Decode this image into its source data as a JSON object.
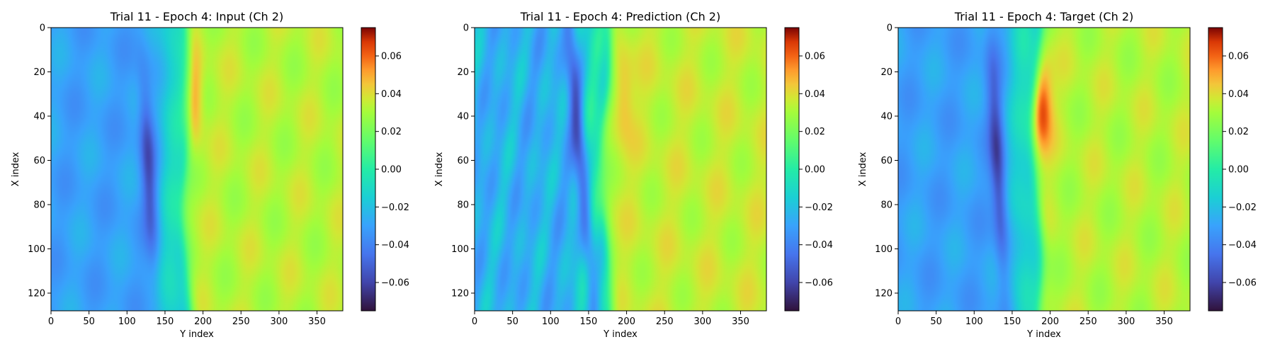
{
  "chart_data": [
    {
      "type": "heatmap",
      "title": "Trial 11 - Epoch 4: Input (Ch 2)",
      "xlabel": "Y index",
      "ylabel": "X index",
      "xlim": [
        0,
        384
      ],
      "ylim": [
        128,
        0
      ],
      "xticks": [
        "0",
        "50",
        "100",
        "150",
        "200",
        "250",
        "300",
        "350"
      ],
      "yticks": [
        "0",
        "20",
        "40",
        "60",
        "80",
        "100",
        "120"
      ],
      "colorbar": {
        "range": [
          -0.075,
          0.075
        ],
        "ticks": [
          "-0.06",
          "-0.04",
          "-0.02",
          "0.00",
          "0.02",
          "0.04",
          "0.06"
        ],
        "colormap": "turbo"
      },
      "field": {
        "front_y": 178,
        "left_level": -0.03,
        "right_level": 0.033,
        "hot_spot": {
          "x": 30,
          "y": 184,
          "value": 0.07
        },
        "cold_band": {
          "x_range": [
            30,
            95
          ],
          "y_center": 127,
          "value": -0.06
        }
      }
    },
    {
      "type": "heatmap",
      "title": "Trial 11 - Epoch 4: Prediction (Ch 2)",
      "xlabel": "Y index",
      "ylabel": "X index",
      "xlim": [
        0,
        384
      ],
      "ylim": [
        128,
        0
      ],
      "xticks": [
        "0",
        "50",
        "100",
        "150",
        "200",
        "250",
        "300",
        "350"
      ],
      "yticks": [
        "0",
        "20",
        "40",
        "60",
        "80",
        "100",
        "120"
      ],
      "colorbar": {
        "range": [
          -0.075,
          0.075
        ],
        "ticks": [
          "-0.06",
          "-0.04",
          "-0.02",
          "0.00",
          "0.02",
          "0.04",
          "0.06"
        ],
        "colormap": "turbo"
      },
      "field": {
        "front_y": 172,
        "left_level": -0.025,
        "right_level": 0.035,
        "hot_spot": {
          "x": 30,
          "y": 195,
          "value": 0.05
        },
        "cold_band": {
          "x_range": [
            0,
            125
          ],
          "y_center": 140,
          "value": -0.065
        }
      }
    },
    {
      "type": "heatmap",
      "title": "Trial 11 - Epoch 4: Target (Ch 2)",
      "xlabel": "Y index",
      "ylabel": "X index",
      "xlim": [
        0,
        384
      ],
      "ylim": [
        128,
        0
      ],
      "xticks": [
        "0",
        "50",
        "100",
        "150",
        "200",
        "250",
        "300",
        "350"
      ],
      "yticks": [
        "0",
        "20",
        "40",
        "60",
        "80",
        "100",
        "120"
      ],
      "colorbar": {
        "range": [
          -0.075,
          0.075
        ],
        "ticks": [
          "-0.06",
          "-0.04",
          "-0.02",
          "0.00",
          "0.02",
          "0.04",
          "0.06"
        ],
        "colormap": "turbo"
      },
      "field": {
        "front_y": 182,
        "left_level": -0.03,
        "right_level": 0.033,
        "hot_spot": {
          "x": 35,
          "y": 188,
          "value": 0.07
        },
        "cold_band": {
          "x_range": [
            25,
            100
          ],
          "y_center": 130,
          "value": -0.065
        }
      }
    }
  ]
}
